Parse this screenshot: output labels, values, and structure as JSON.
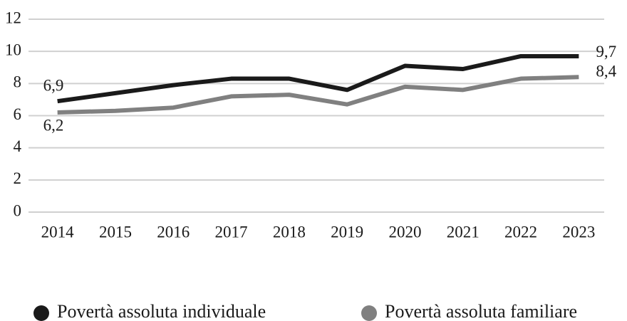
{
  "chart_data": {
    "type": "line",
    "categories": [
      "2014",
      "2015",
      "2016",
      "2017",
      "2018",
      "2019",
      "2020",
      "2021",
      "2022",
      "2023"
    ],
    "series": [
      {
        "name": "Povertà assoluta individuale",
        "color": "#1a1a1a",
        "values": [
          6.9,
          7.4,
          7.9,
          8.3,
          8.3,
          7.6,
          9.1,
          8.9,
          9.7,
          9.7
        ],
        "value_labels": [
          "6,9",
          null,
          null,
          null,
          null,
          null,
          null,
          null,
          null,
          "9,7"
        ]
      },
      {
        "name": "Povertà assoluta familiare",
        "color": "#808080",
        "values": [
          6.2,
          6.3,
          6.5,
          7.2,
          7.3,
          6.7,
          7.8,
          7.6,
          8.3,
          8.4
        ],
        "value_labels": [
          "6,2",
          null,
          null,
          null,
          null,
          null,
          null,
          null,
          null,
          "8,4"
        ]
      }
    ],
    "ylim": [
      0,
      12
    ],
    "yticks": [
      0,
      2,
      4,
      6,
      8,
      10,
      12
    ],
    "grid": true,
    "legend": "bottom"
  }
}
